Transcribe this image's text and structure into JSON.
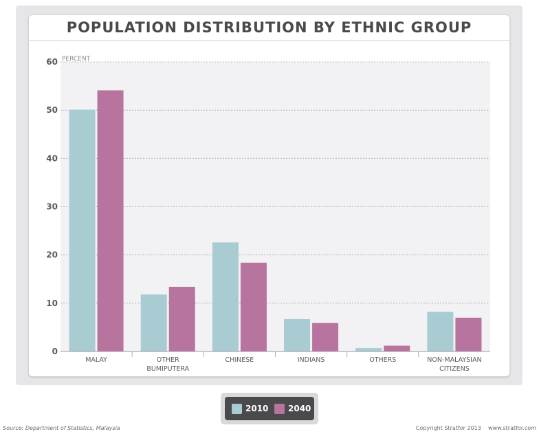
{
  "chart_data": {
    "type": "bar",
    "title": "POPULATION DISTRIBUTION BY ETHNIC GROUP",
    "ylabel": "PERCENT",
    "xlabel": "",
    "ylim": [
      0,
      60
    ],
    "yticks": [
      0,
      10,
      20,
      30,
      40,
      50,
      60
    ],
    "grid": true,
    "legend_position": "bottom",
    "categories": [
      [
        "MALAY"
      ],
      [
        "OTHER",
        "BUMIPUTERA"
      ],
      [
        "CHINESE"
      ],
      [
        "INDIANS"
      ],
      [
        "OTHERS"
      ],
      [
        "NON-MALAYSIAN",
        "CITIZENS"
      ]
    ],
    "series": [
      {
        "name": "2010",
        "color": "#a8ccd2",
        "values": [
          50.1,
          11.8,
          22.6,
          6.7,
          0.7,
          8.2
        ]
      },
      {
        "name": "2040",
        "color": "#b7749f",
        "values": [
          54.1,
          13.4,
          18.4,
          5.9,
          1.2,
          7.0
        ]
      }
    ]
  },
  "footer": {
    "source": "Source: Department of Statistics, Malaysia",
    "copyright": "Copyright Stratfor 2013    www.stratfor.com"
  }
}
